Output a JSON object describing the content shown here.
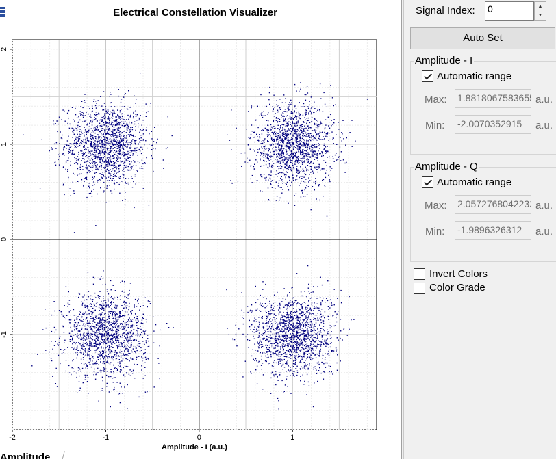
{
  "chart_data": {
    "type": "scatter",
    "title": "Electrical Constellation Visualizer",
    "xlabel": "Amplitude - I (a.u.)",
    "ylabel": "",
    "xlim": [
      -2,
      1.9
    ],
    "ylim": [
      -2,
      2.1
    ],
    "x_ticks": [
      "-2",
      "-1",
      "0",
      "1"
    ],
    "y_ticks": [
      "2",
      "1",
      "0",
      "-1"
    ],
    "grid": true,
    "series": [
      {
        "color": "#00007f",
        "clusters": [
          {
            "cx": -1.0,
            "cy": 1.0,
            "spread": 0.22,
            "count": 1500
          },
          {
            "cx": 1.0,
            "cy": 1.0,
            "spread": 0.22,
            "count": 1500
          },
          {
            "cx": -1.0,
            "cy": -1.0,
            "spread": 0.22,
            "count": 1500
          },
          {
            "cx": 1.0,
            "cy": -1.0,
            "spread": 0.22,
            "count": 1500
          }
        ]
      }
    ]
  },
  "bottom_tab": {
    "label": "Amplitude"
  },
  "panel": {
    "signal_index_label": "Signal Index:",
    "signal_index_value": "0",
    "auto_set_label": "Auto Set",
    "amp_i": {
      "title": "Amplitude - I",
      "auto_label": "Automatic range",
      "auto_checked": true,
      "max_label": "Max:",
      "max_value": "1.8818067583655",
      "min_label": "Min:",
      "min_value": "-2.0070352915",
      "unit": "a.u."
    },
    "amp_q": {
      "title": "Amplitude - Q",
      "auto_label": "Automatic range",
      "auto_checked": true,
      "max_label": "Max:",
      "max_value": "2.0572768042232",
      "min_label": "Min:",
      "min_value": "-1.9896326312",
      "unit": "a.u."
    },
    "invert_colors_label": "Invert Colors",
    "color_grade_label": "Color Grade"
  }
}
